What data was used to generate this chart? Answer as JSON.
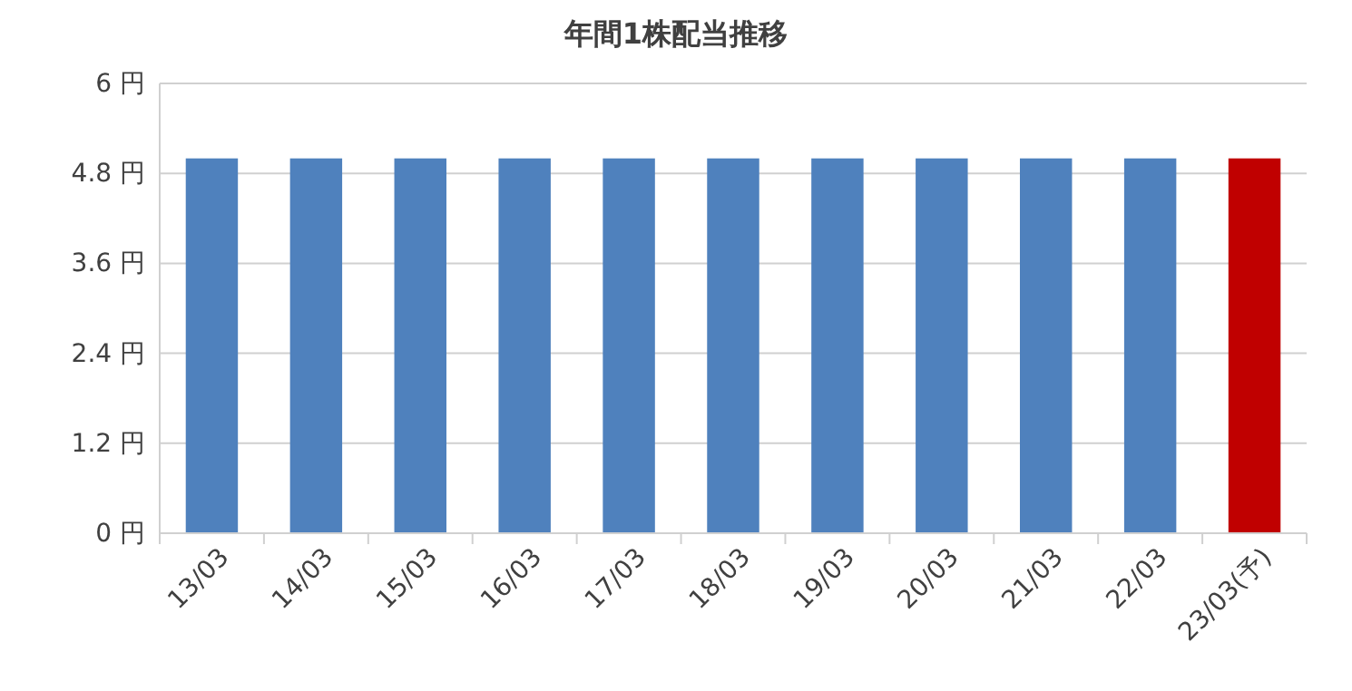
{
  "chart_data": {
    "type": "bar",
    "title": "年間1株配当推移",
    "categories": [
      "13/03",
      "14/03",
      "15/03",
      "16/03",
      "17/03",
      "18/03",
      "19/03",
      "20/03",
      "21/03",
      "22/03",
      "23/03(予)"
    ],
    "values": [
      5,
      5,
      5,
      5,
      5,
      5,
      5,
      5,
      5,
      5,
      5
    ],
    "colors": [
      "#4f81bd",
      "#4f81bd",
      "#4f81bd",
      "#4f81bd",
      "#4f81bd",
      "#4f81bd",
      "#4f81bd",
      "#4f81bd",
      "#4f81bd",
      "#4f81bd",
      "#c00000"
    ],
    "ylim": [
      0,
      6
    ],
    "yticks": [
      {
        "value": 0,
        "label": "0 円"
      },
      {
        "value": 1.2,
        "label": "1.2 円"
      },
      {
        "value": 2.4,
        "label": "2.4 円"
      },
      {
        "value": 3.6,
        "label": "3.6 円"
      },
      {
        "value": 4.8,
        "label": "4.8 円"
      },
      {
        "value": 6,
        "label": "6 円"
      }
    ],
    "grid": "y"
  }
}
